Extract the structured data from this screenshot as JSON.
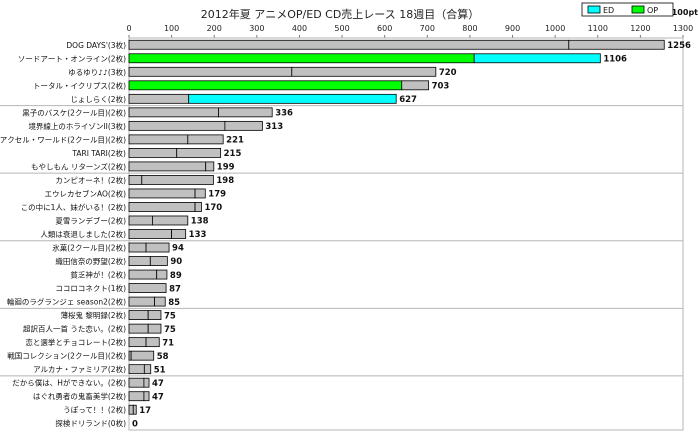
{
  "chart_data": {
    "type": "bar",
    "orientation": "horizontal",
    "stacked": true,
    "title": "2012年夏 アニメOP/ED CD売上レース 18週目（合算）",
    "unit_label": "x100pt",
    "xlim": [
      0,
      1300
    ],
    "x_ticks": [
      0,
      100,
      200,
      300,
      400,
      500,
      600,
      700,
      800,
      900,
      1000,
      1100,
      1200,
      1300
    ],
    "legend": {
      "placement": "top-right",
      "entries": [
        "ED",
        "OP"
      ]
    },
    "colors": {
      "ED": "#00ffff",
      "OP": "#00ff00",
      "other": "#c0c0c0",
      "stroke": "#000000",
      "grid": "#b5b5b5"
    },
    "grid": false,
    "group_separators_after": [
      4,
      9,
      14,
      19,
      24,
      29
    ],
    "categories": [
      "DOG DAYS'(3枚)",
      "ソードアート・オンライン(2枚)",
      "ゆるゆり♪♪(3枚)",
      "トータル・イクリプス(2枚)",
      "じょしらく(2枚)",
      "黒子のバスケ(2クール目)(2枚)",
      "境界線上のホライゾンII(3枚)",
      "アクセル・ワールド(2クール目)(2枚)",
      "TARI TARI(2枚)",
      "もやしもん リターンズ(2枚)",
      "カンピオーネ！(2枚)",
      "エウレカセブンAO(2枚)",
      "この中に1人、妹がいる！(2枚)",
      "夏雪ランデブー(2枚)",
      "人類は衰退しました(2枚)",
      "氷菓(2クール目)(2枚)",
      "織田信奈の野望(2枚)",
      "貧乏神が！(2枚)",
      "ココロコネクト(1枚)",
      "輪廻のラグランジェ season2(2枚)",
      "薄桜鬼 黎明録(2枚)",
      "超訳百人一首 うた恋い。(2枚)",
      "恋と選挙とチョコレート(2枚)",
      "戦国コレクション(2クール目)(2枚)",
      "アルカナ・ファミリア(2枚)",
      "だから僕は、Hができない。(2枚)",
      "はぐれ勇者の鬼畜美学(2枚)",
      "うぽって！！(2枚)",
      "探検ドリランド(0枚)"
    ],
    "values": [
      1256,
      1106,
      720,
      703,
      627,
      336,
      313,
      221,
      215,
      199,
      198,
      179,
      170,
      138,
      133,
      94,
      90,
      89,
      87,
      85,
      75,
      75,
      71,
      58,
      51,
      47,
      47,
      17,
      0
    ],
    "segments": [
      [
        {
          "v": 1032,
          "s": "other"
        },
        {
          "v": 224,
          "s": "other"
        }
      ],
      [
        {
          "v": 810,
          "s": "OP"
        },
        {
          "v": 296,
          "s": "ED"
        }
      ],
      [
        {
          "v": 382,
          "s": "other"
        },
        {
          "v": 338,
          "s": "other"
        }
      ],
      [
        {
          "v": 640,
          "s": "OP"
        },
        {
          "v": 63,
          "s": "other"
        }
      ],
      [
        {
          "v": 140,
          "s": "other"
        },
        {
          "v": 487,
          "s": "ED"
        }
      ],
      [
        {
          "v": 210,
          "s": "other"
        },
        {
          "v": 126,
          "s": "other"
        }
      ],
      [
        {
          "v": 225,
          "s": "other"
        },
        {
          "v": 88,
          "s": "other"
        }
      ],
      [
        {
          "v": 138,
          "s": "other"
        },
        {
          "v": 83,
          "s": "other"
        }
      ],
      [
        {
          "v": 112,
          "s": "other"
        },
        {
          "v": 103,
          "s": "other"
        }
      ],
      [
        {
          "v": 180,
          "s": "other"
        },
        {
          "v": 19,
          "s": "other"
        }
      ],
      [
        {
          "v": 30,
          "s": "other"
        },
        {
          "v": 168,
          "s": "other"
        }
      ],
      [
        {
          "v": 155,
          "s": "other"
        },
        {
          "v": 24,
          "s": "other"
        }
      ],
      [
        {
          "v": 155,
          "s": "other"
        },
        {
          "v": 15,
          "s": "other"
        }
      ],
      [
        {
          "v": 55,
          "s": "other"
        },
        {
          "v": 83,
          "s": "other"
        }
      ],
      [
        {
          "v": 100,
          "s": "other"
        },
        {
          "v": 33,
          "s": "other"
        }
      ],
      [
        {
          "v": 40,
          "s": "other"
        },
        {
          "v": 54,
          "s": "other"
        }
      ],
      [
        {
          "v": 50,
          "s": "other"
        },
        {
          "v": 40,
          "s": "other"
        }
      ],
      [
        {
          "v": 65,
          "s": "other"
        },
        {
          "v": 24,
          "s": "other"
        }
      ],
      [
        {
          "v": 87,
          "s": "other"
        }
      ],
      [
        {
          "v": 60,
          "s": "other"
        },
        {
          "v": 25,
          "s": "other"
        }
      ],
      [
        {
          "v": 45,
          "s": "other"
        },
        {
          "v": 30,
          "s": "other"
        }
      ],
      [
        {
          "v": 45,
          "s": "other"
        },
        {
          "v": 30,
          "s": "other"
        }
      ],
      [
        {
          "v": 40,
          "s": "other"
        },
        {
          "v": 31,
          "s": "other"
        }
      ],
      [
        {
          "v": 5,
          "s": "other"
        },
        {
          "v": 53,
          "s": "other"
        }
      ],
      [
        {
          "v": 36,
          "s": "other"
        },
        {
          "v": 15,
          "s": "other"
        }
      ],
      [
        {
          "v": 35,
          "s": "other"
        },
        {
          "v": 12,
          "s": "other"
        }
      ],
      [
        {
          "v": 35,
          "s": "other"
        },
        {
          "v": 12,
          "s": "other"
        }
      ],
      [
        {
          "v": 10,
          "s": "other"
        },
        {
          "v": 7,
          "s": "other"
        }
      ],
      []
    ]
  }
}
